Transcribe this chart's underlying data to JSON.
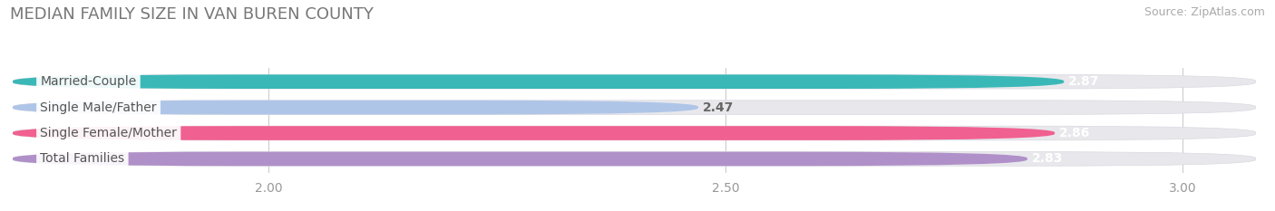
{
  "title": "MEDIAN FAMILY SIZE IN VAN BUREN COUNTY",
  "source": "Source: ZipAtlas.com",
  "categories": [
    "Married-Couple",
    "Single Male/Father",
    "Single Female/Mother",
    "Total Families"
  ],
  "values": [
    2.87,
    2.47,
    2.86,
    2.83
  ],
  "bar_colors": [
    "#3ab8b8",
    "#afc5e8",
    "#f06090",
    "#b090c8"
  ],
  "label_text_color": "#555555",
  "value_label_colors": [
    "#ffffff",
    "#666666",
    "#ffffff",
    "#ffffff"
  ],
  "xlim_min": 1.72,
  "xlim_max": 3.08,
  "xticks": [
    2.0,
    2.5,
    3.0
  ],
  "xtick_labels": [
    "2.00",
    "2.50",
    "3.00"
  ],
  "background_color": "#ffffff",
  "bar_bg_color": "#e8e8ec",
  "bar_bg_edge_color": "#d8d8e0",
  "title_fontsize": 13,
  "source_fontsize": 9,
  "label_fontsize": 10,
  "value_fontsize": 10,
  "tick_fontsize": 10,
  "bar_height": 0.55,
  "grid_color": "#dddddd"
}
